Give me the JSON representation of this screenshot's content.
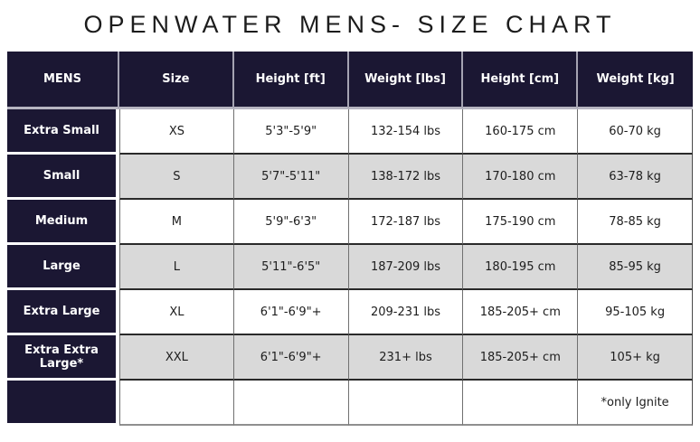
{
  "title": "OPENWATER MENS- SIZE CHART",
  "colors": {
    "header_bg": "#1b1733",
    "alt_row_bg": "#d9d9d9",
    "row_bg": "#ffffff",
    "header_text": "#ffffff",
    "body_text": "#1d1d1d"
  },
  "table": {
    "columns": [
      "MENS",
      "Size",
      "Height [ft]",
      "Weight [lbs]",
      "Height [cm]",
      "Weight [kg]"
    ],
    "rows": [
      {
        "cells": [
          "Extra Small",
          "XS",
          "5'3\"-5'9\"",
          "132-154 lbs",
          "160-175 cm",
          "60-70 kg"
        ]
      },
      {
        "cells": [
          "Small",
          "S",
          "5'7\"-5'11\"",
          "138-172 lbs",
          "170-180 cm",
          "63-78 kg"
        ]
      },
      {
        "cells": [
          "Medium",
          "M",
          "5'9\"-6'3\"",
          "172-187 lbs",
          "175-190 cm",
          "78-85 kg"
        ]
      },
      {
        "cells": [
          "Large",
          "L",
          "5'11\"-6'5\"",
          "187-209 lbs",
          "180-195 cm",
          "85-95 kg"
        ]
      },
      {
        "cells": [
          "Extra Large",
          "XL",
          "6'1\"-6'9\"+",
          "209-231 lbs",
          "185-205+ cm",
          "95-105 kg"
        ]
      },
      {
        "cells": [
          "Extra Extra Large*",
          "XXL",
          "6'1\"-6'9\"+",
          "231+ lbs",
          "185-205+ cm",
          "105+ kg"
        ]
      },
      {
        "cells": [
          "",
          "",
          "",
          "",
          "",
          "*only Ignite"
        ]
      }
    ],
    "footnote": "*only Ignite"
  }
}
